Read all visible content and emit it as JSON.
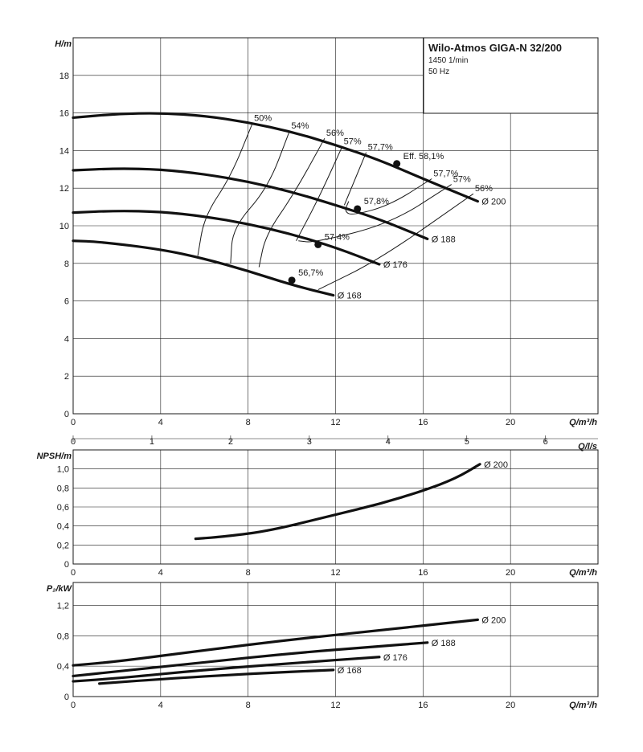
{
  "info_box": {
    "title": "Wilo-Atmos GIGA-N 32/200",
    "speed": "1450 1/min",
    "frequency": "50 Hz"
  },
  "chart_data": [
    {
      "type": "line",
      "id": "head",
      "ylabel": "H/m",
      "xlabel": "Q/m³/h",
      "xlim": [
        0,
        24
      ],
      "ylim": [
        0,
        20
      ],
      "xticks": [
        0,
        4,
        8,
        12,
        16,
        20
      ],
      "yticks": [
        0,
        2,
        4,
        6,
        8,
        10,
        12,
        14,
        16,
        18
      ],
      "tick_decimal": ".",
      "grid": true,
      "series": [
        {
          "name": "Ø 200",
          "points": [
            [
              0,
              15.75
            ],
            [
              2,
              15.95
            ],
            [
              4,
              16.0
            ],
            [
              6,
              15.85
            ],
            [
              8,
              15.5
            ],
            [
              10,
              15.0
            ],
            [
              12,
              14.3
            ],
            [
              14,
              13.5
            ],
            [
              16,
              12.5
            ],
            [
              18.5,
              11.3
            ]
          ]
        },
        {
          "name": "Ø 188",
          "points": [
            [
              0,
              12.95
            ],
            [
              2,
              13.05
            ],
            [
              4,
              13.0
            ],
            [
              6,
              12.75
            ],
            [
              8,
              12.35
            ],
            [
              10,
              11.8
            ],
            [
              12,
              11.1
            ],
            [
              14,
              10.35
            ],
            [
              16,
              9.4
            ],
            [
              16.2,
              9.3
            ]
          ]
        },
        {
          "name": "Ø 176",
          "points": [
            [
              0,
              10.7
            ],
            [
              2,
              10.8
            ],
            [
              4,
              10.75
            ],
            [
              6,
              10.5
            ],
            [
              8,
              10.1
            ],
            [
              10,
              9.55
            ],
            [
              12,
              8.85
            ],
            [
              14,
              7.95
            ]
          ]
        },
        {
          "name": "Ø 168",
          "points": [
            [
              0,
              9.2
            ],
            [
              1.2,
              9.15
            ],
            [
              4,
              8.75
            ],
            [
              6,
              8.25
            ],
            [
              8,
              7.6
            ],
            [
              10,
              6.85
            ],
            [
              11.9,
              6.3
            ]
          ]
        }
      ],
      "operating_points": [
        {
          "label": "Eff. 58,1%",
          "x": 14.8,
          "y": 13.3
        },
        {
          "label": "57,8%",
          "x": 13.0,
          "y": 10.9
        },
        {
          "label": "57,4%",
          "x": 11.2,
          "y": 9.0
        },
        {
          "label": "56,7%",
          "x": 10.0,
          "y": 7.1
        }
      ],
      "efficiency_lines": [
        {
          "label": "50%",
          "points": [
            [
              8.2,
              15.45
            ],
            [
              7.2,
              12.6
            ],
            [
              6.0,
              10.5
            ],
            [
              5.7,
              8.4
            ]
          ]
        },
        {
          "label": "54%",
          "points": [
            [
              9.9,
              15.05
            ],
            [
              8.9,
              12.0
            ],
            [
              7.3,
              9.9
            ],
            [
              7.2,
              8.0
            ]
          ]
        },
        {
          "label": "56%",
          "points": [
            [
              11.5,
              14.65
            ],
            [
              10.1,
              11.7
            ],
            [
              8.8,
              9.5
            ],
            [
              8.5,
              7.8
            ]
          ]
        },
        {
          "label": "57%",
          "points": [
            [
              12.3,
              14.2
            ],
            [
              11.2,
              11.4
            ],
            [
              10.2,
              9.2
            ],
            [
              10.2,
              9.2
            ]
          ]
        },
        {
          "label": "57,7%",
          "points": [
            [
              13.4,
              13.9
            ],
            [
              12.4,
              11.1
            ],
            [
              12.4,
              11.1
            ]
          ]
        },
        {
          "label": "57,7%",
          "points": [
            [
              16.4,
              12.5
            ],
            [
              14.5,
              11.1
            ],
            [
              12.8,
              10.55
            ],
            [
              12.4,
              10.75
            ],
            [
              12.6,
              11.3
            ]
          ]
        },
        {
          "label": "57%",
          "points": [
            [
              17.3,
              12.2
            ],
            [
              14.5,
              10.1
            ],
            [
              11.0,
              9.1
            ],
            [
              10.3,
              9.2
            ]
          ]
        },
        {
          "label": "56%",
          "points": [
            [
              18.3,
              11.7
            ],
            [
              14.0,
              8.2
            ],
            [
              11.2,
              6.6
            ]
          ]
        }
      ]
    },
    {
      "type": "line",
      "id": "npsh",
      "ylabel": "NPSH/m",
      "xlabel": "Q/m³/h",
      "xlim": [
        0,
        24
      ],
      "ylim": [
        0,
        1.2
      ],
      "xticks": [
        0,
        4,
        8,
        12,
        16,
        20
      ],
      "yticks": [
        "0",
        "0,2",
        "0,4",
        "0,6",
        "0,8",
        "1,0"
      ],
      "top_axis": {
        "label": "Q/l/s",
        "ticks": [
          0,
          1,
          2,
          3,
          4,
          5,
          6
        ]
      },
      "grid": true,
      "series": [
        {
          "name": "Ø 200",
          "points": [
            [
              5.6,
              0.265
            ],
            [
              7.0,
              0.29
            ],
            [
              9.0,
              0.35
            ],
            [
              12.0,
              0.52
            ],
            [
              14.0,
              0.63
            ],
            [
              16.0,
              0.77
            ],
            [
              17.5,
              0.9
            ],
            [
              18.6,
              1.05
            ]
          ]
        }
      ]
    },
    {
      "type": "line",
      "id": "power",
      "ylabel": "P₂/kW",
      "xlabel": "Q/m³/h",
      "xlim": [
        0,
        24
      ],
      "ylim": [
        0,
        1.5
      ],
      "xticks": [
        0,
        4,
        8,
        12,
        16,
        20
      ],
      "yticks": [
        "0",
        "0,4",
        "0,8",
        "1,2"
      ],
      "grid": true,
      "series": [
        {
          "name": "Ø 200",
          "points": [
            [
              0,
              0.41
            ],
            [
              2,
              0.46
            ],
            [
              6,
              0.61
            ],
            [
              10,
              0.75
            ],
            [
              14,
              0.87
            ],
            [
              18.5,
              1.01
            ]
          ]
        },
        {
          "name": "Ø 188",
          "points": [
            [
              0,
              0.27
            ],
            [
              2,
              0.33
            ],
            [
              6,
              0.45
            ],
            [
              10,
              0.57
            ],
            [
              14,
              0.66
            ],
            [
              16.2,
              0.71
            ]
          ]
        },
        {
          "name": "Ø 176",
          "points": [
            [
              0,
              0.2
            ],
            [
              2,
              0.24
            ],
            [
              6,
              0.35
            ],
            [
              10,
              0.44
            ],
            [
              14,
              0.52
            ]
          ]
        },
        {
          "name": "Ø 168",
          "points": [
            [
              1.2,
              0.17
            ],
            [
              4,
              0.23
            ],
            [
              8,
              0.3
            ],
            [
              11.9,
              0.35
            ]
          ]
        }
      ]
    }
  ]
}
